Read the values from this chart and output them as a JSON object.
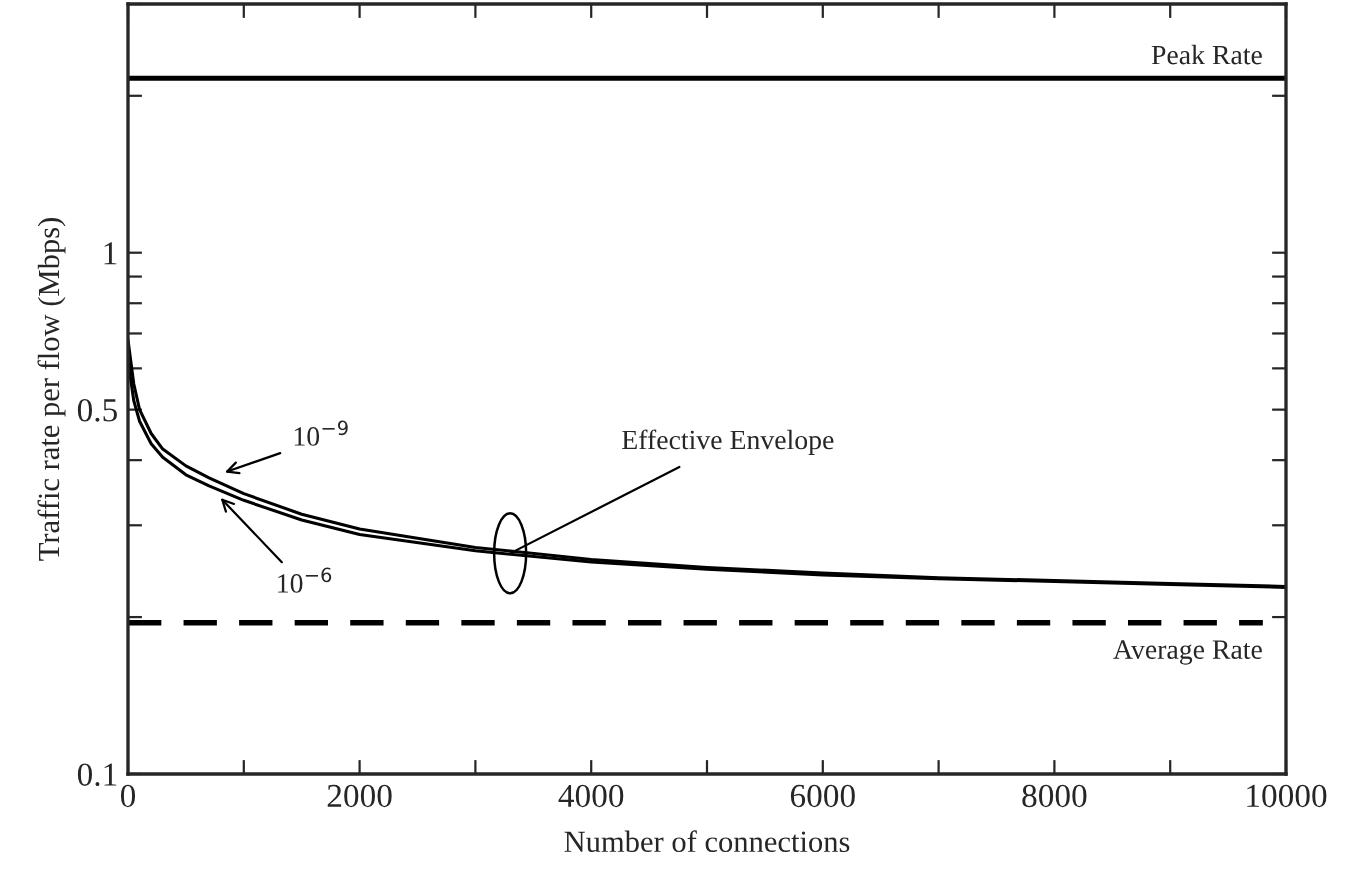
{
  "chart_data": {
    "type": "line",
    "xlabel": "Number of connections",
    "ylabel": "Traffic rate per flow (Mbps)",
    "log": "y",
    "grid": false,
    "line_style": "solid",
    "marker": "none",
    "xlim": [
      0,
      10000
    ],
    "xticks": [
      0,
      {
        "value": 1000,
        "label": null
      },
      2000,
      {
        "value": 3000,
        "label": null
      },
      4000,
      {
        "value": 5000,
        "label": null
      },
      6000,
      {
        "value": 7000,
        "label": null
      },
      8000,
      {
        "value": 9000,
        "label": null
      },
      10000
    ],
    "ylim": [
      0.1,
      3
    ],
    "yticks": [
      0.1,
      {
        "value": 0.2,
        "label": null
      },
      {
        "value": 0.3,
        "label": null
      },
      {
        "value": 0.4,
        "label": null
      },
      0.5,
      {
        "value": 0.6,
        "label": null
      },
      {
        "value": 0.7,
        "label": null
      },
      {
        "value": 0.8,
        "label": null
      },
      {
        "value": 0.9,
        "label": null
      },
      1,
      {
        "value": 2,
        "label": null
      },
      {
        "value": 3,
        "label": null
      }
    ],
    "x": [
      0,
      50,
      100,
      200,
      300,
      500,
      700,
      1000,
      1500,
      2000,
      3000,
      4000,
      5000,
      6000,
      7000,
      8000,
      9000,
      10000
    ],
    "series": [
      {
        "name": "10$^{−9}$",
        "color": "#000000",
        "values": [
          0.68,
          0.56,
          0.5,
          0.45,
          0.42,
          0.39,
          0.37,
          0.345,
          0.315,
          0.295,
          0.272,
          0.258,
          0.249,
          0.243,
          0.238,
          0.235,
          0.232,
          0.229
        ]
      },
      {
        "name": "10$^{−6}$",
        "color": "#000000",
        "values": [
          0.62,
          0.52,
          0.475,
          0.43,
          0.405,
          0.375,
          0.357,
          0.335,
          0.307,
          0.288,
          0.268,
          0.255,
          0.247,
          0.241,
          0.237,
          0.234,
          0.231,
          0.228
        ]
      }
    ],
    "ref_lines": [
      {
        "axis": "y",
        "value": 2.16,
        "label": "Peak Rate",
        "color": "#000000",
        "line_style": "solid"
      },
      {
        "axis": "y",
        "value": 0.195,
        "label": "Average Rate",
        "color": "#000000",
        "line_style": "dashed"
      }
    ],
    "annotations": [
      {
        "text": "Effective Envelope",
        "x": 3300,
        "y": 0.265
      }
    ]
  }
}
